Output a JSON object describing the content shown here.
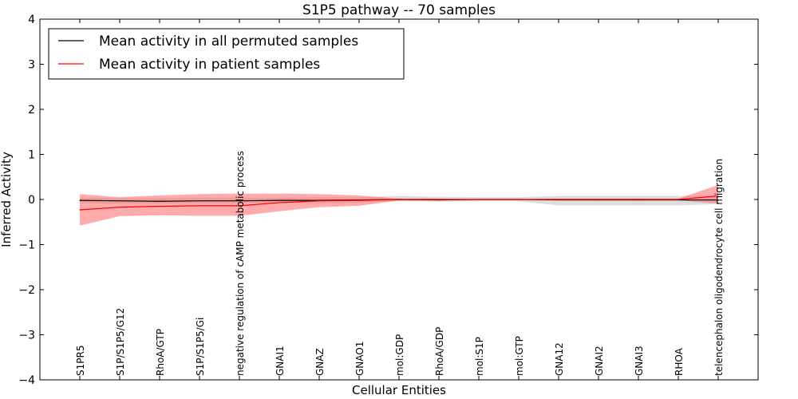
{
  "chart_data": {
    "type": "line",
    "title": "S1P5 pathway -- 70 samples",
    "xlabel": "Cellular Entities",
    "ylabel": "Inferred Activity",
    "ylim": [
      -4,
      4
    ],
    "yticks": [
      -4,
      -3,
      -2,
      -1,
      0,
      1,
      2,
      3,
      4
    ],
    "ytick_labels": [
      "−4",
      "−3",
      "−2",
      "−1",
      "0",
      "1",
      "2",
      "3",
      "4"
    ],
    "categories": [
      "S1PR5",
      "S1P/S1P5/G12",
      "RhoA/GTP",
      "S1P/S1P5/Gi",
      "negative regulation of cAMP metabolic process",
      "GNAI1",
      "GNAZ",
      "GNAO1",
      "mol:GDP",
      "RhoA/GDP",
      "mol:S1P",
      "mol:GTP",
      "GNA12",
      "GNAI2",
      "GNAI3",
      "RHOA",
      "telencephalon oligodendrocyte cell migration"
    ],
    "legend_position": "top-left",
    "series": [
      {
        "name": "Mean activity in all permuted samples",
        "color": "#000000",
        "band_color": "#bbbbbb",
        "values": [
          -0.02,
          -0.03,
          -0.04,
          -0.03,
          -0.03,
          -0.02,
          -0.02,
          -0.01,
          0.0,
          -0.01,
          0.0,
          0.0,
          -0.01,
          -0.01,
          -0.01,
          -0.01,
          -0.01
        ],
        "upper": [
          0.04,
          0.03,
          0.03,
          0.04,
          0.04,
          0.04,
          0.05,
          0.05,
          0.08,
          0.06,
          0.05,
          0.05,
          0.08,
          0.08,
          0.08,
          0.08,
          0.08
        ],
        "lower": [
          -0.08,
          -0.09,
          -0.09,
          -0.08,
          -0.08,
          -0.08,
          -0.08,
          -0.07,
          -0.04,
          -0.05,
          -0.04,
          -0.04,
          -0.13,
          -0.13,
          -0.13,
          -0.13,
          -0.1
        ]
      },
      {
        "name": "Mean activity in patient samples",
        "color": "#ff0000",
        "band_color": "#ff6666",
        "values": [
          -0.23,
          -0.17,
          -0.15,
          -0.14,
          -0.14,
          -0.07,
          -0.03,
          -0.02,
          0.0,
          0.0,
          0.0,
          0.0,
          0.0,
          0.0,
          0.0,
          0.0,
          0.08
        ],
        "upper": [
          0.12,
          0.05,
          0.09,
          0.12,
          0.13,
          0.13,
          0.12,
          0.09,
          0.02,
          0.02,
          0.01,
          0.01,
          0.02,
          0.02,
          0.02,
          0.02,
          0.32
        ],
        "lower": [
          -0.58,
          -0.37,
          -0.35,
          -0.36,
          -0.36,
          -0.26,
          -0.17,
          -0.14,
          -0.02,
          -0.02,
          -0.01,
          -0.01,
          -0.02,
          -0.02,
          -0.02,
          -0.02,
          -0.09
        ]
      }
    ]
  }
}
